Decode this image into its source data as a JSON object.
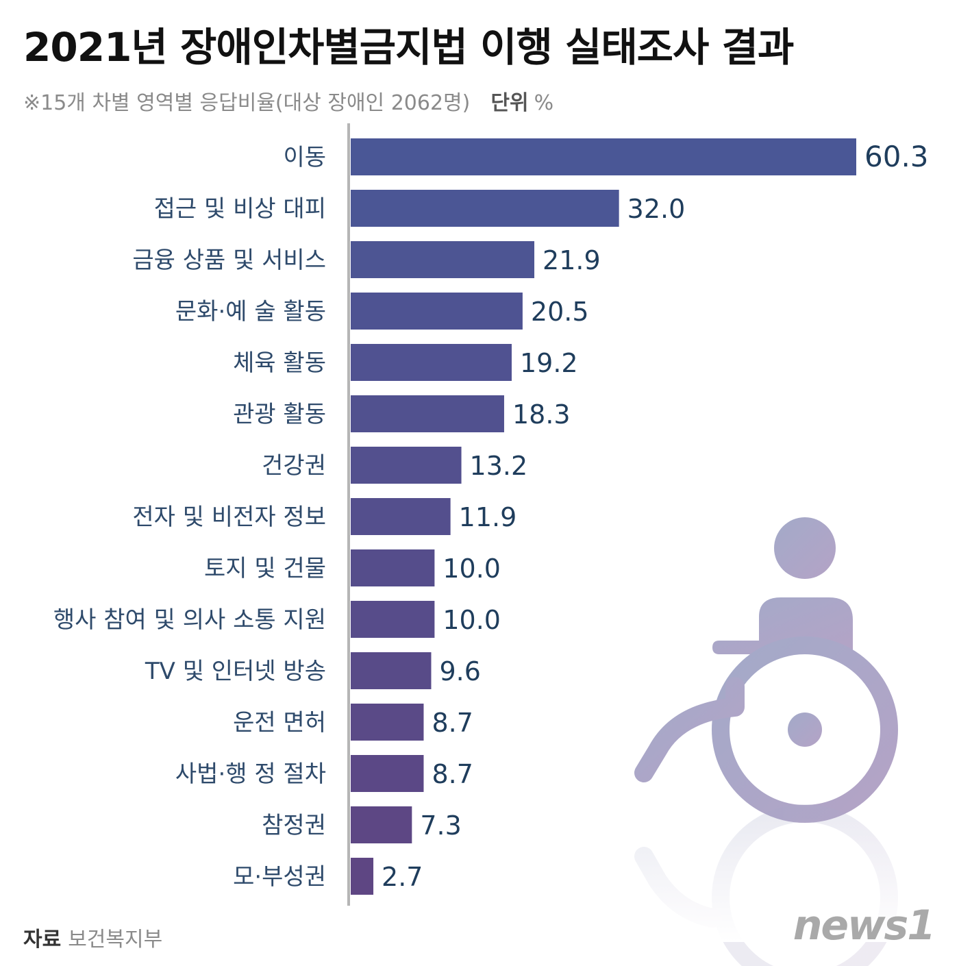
{
  "title": "2021년 장애인차별금지법 이행 실태조사 결과",
  "subtitle": "※15개 차별 영역별 응답비율(대상 장애인 2062명)",
  "unit_label": "단위",
  "unit_value": "%",
  "source_label": "자료",
  "source_value": "보건복지부",
  "logo_text": "news1",
  "icons": [
    "wheelchair-icon"
  ],
  "colors": {
    "bar_top": "#4a5796",
    "bar_bottom": "#5e4683",
    "label_text": "#2e4a6b",
    "value_text": "#1f3d5c",
    "axis": "#b5b5b5",
    "icon": "#a7a9c8"
  },
  "chart_data": {
    "type": "bar",
    "orientation": "horizontal",
    "categories": [
      "이동",
      "접근 및 비상 대피",
      "금융 상품 및 서비스",
      "문화·예 술 활동",
      "체육 활동",
      "관광 활동",
      "건강권",
      "전자 및 비전자 정보",
      "토지 및 건물",
      "행사 참여 및 의사 소통 지원",
      "TV 및 인터넷 방송",
      "운전 면허",
      "사법·행 정 절차",
      "참정권",
      "모·부성권"
    ],
    "values": [
      60.3,
      32.0,
      21.9,
      20.5,
      19.2,
      18.3,
      13.2,
      11.9,
      10.0,
      10.0,
      9.6,
      8.7,
      8.7,
      7.3,
      2.7
    ],
    "value_labels": [
      "60.3",
      "32.0",
      "21.9",
      "20.5",
      "19.2",
      "18.3",
      "13.2",
      "11.9",
      "10.0",
      "10.0",
      "9.6",
      "8.7",
      "8.7",
      "7.3",
      "2.7"
    ],
    "xlim": [
      0,
      60.3
    ],
    "grid": false,
    "legend": "none"
  }
}
